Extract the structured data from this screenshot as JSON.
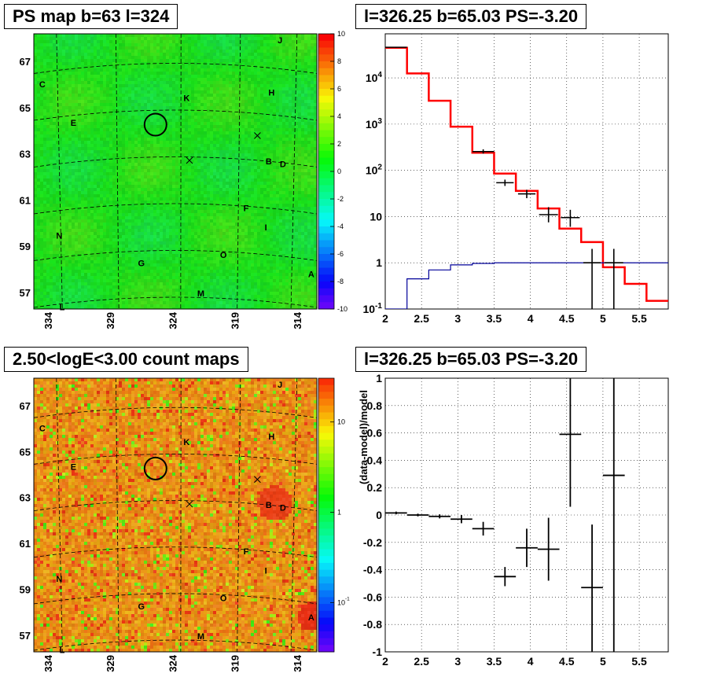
{
  "panels": {
    "ps_map_title": "PS map b=63 l=324",
    "spectrum_title": "l=326.25 b=65.03 PS=-3.20",
    "count_map_title": "2.50<logE<3.00 count maps",
    "residual_title": "l=326.25 b=65.03 PS=-3.20"
  },
  "colors": {
    "map_green": "#1ee82a",
    "map_orange": "#f0a020",
    "model_line": "#ff0000",
    "background_line": "#000099",
    "data_points": "#000000"
  },
  "chart_data": [
    {
      "type": "heatmap",
      "id": "ps_map",
      "title": "PS map b=63 l=324",
      "x_tick_labels": [
        "334",
        "329",
        "324",
        "319",
        "314"
      ],
      "y_tick_labels": [
        "67",
        "65",
        "63",
        "61",
        "59",
        "57"
      ],
      "colorbar_ticks": [
        "10",
        "8",
        "6",
        "4",
        "2",
        "0",
        "-2",
        "-4",
        "-6",
        "-8",
        "-10"
      ],
      "colorbar_range": [
        -10,
        10
      ],
      "dominant_value_range": [
        -1,
        3
      ],
      "source_labels": [
        "J",
        "C",
        "H",
        "K",
        "E",
        "B",
        "D",
        "F",
        "I",
        "N",
        "O",
        "G",
        "A",
        "M",
        "L"
      ],
      "markers": [
        "circle",
        "x",
        "x"
      ]
    },
    {
      "type": "line",
      "id": "spectrum",
      "title": "l=326.25 b=65.03 PS=-3.20",
      "x_tick_labels": [
        "2",
        "2.5",
        "3",
        "3.5",
        "4",
        "4.5",
        "5",
        "5.5"
      ],
      "xlim": [
        2,
        5.9
      ],
      "y_tick_labels": [
        "10^-1",
        "1",
        "10",
        "10^2",
        "10^3",
        "10^4"
      ],
      "ylim": [
        0.1,
        90000
      ],
      "yscale": "log",
      "grid": true,
      "series": [
        {
          "role": "model",
          "color": "#ff0000",
          "step_edges": [
            2,
            2.3,
            2.6,
            2.9,
            3.2,
            3.5,
            3.8,
            4.1,
            4.4,
            4.7,
            5.0,
            5.3,
            5.6,
            5.9
          ],
          "values": [
            45000,
            12500,
            3200,
            880,
            240,
            85,
            36,
            15,
            5.5,
            2.8,
            0.8,
            0.35,
            0.15
          ]
        },
        {
          "role": "background",
          "color": "#000099",
          "step_edges": [
            2,
            2.3,
            2.6,
            2.9,
            3.2,
            3.5,
            3.8,
            4.1,
            4.4,
            4.7,
            5.0,
            5.3,
            5.6,
            5.9
          ],
          "values": [
            0.1,
            0.45,
            0.7,
            0.9,
            0.97,
            1.0,
            1.0,
            1.0,
            1.0,
            1.0,
            1.0,
            1.0,
            1.0
          ]
        },
        {
          "role": "data",
          "color": "#000000",
          "points": [
            {
              "x": 2.15,
              "y": 46000,
              "xerr": 0.15,
              "ylo": 45000,
              "yhi": 47000
            },
            {
              "x": 3.35,
              "y": 255,
              "xerr": 0.15,
              "ylo": 230,
              "yhi": 285
            },
            {
              "x": 3.65,
              "y": 54,
              "xerr": 0.12,
              "ylo": 46,
              "yhi": 63
            },
            {
              "x": 3.95,
              "y": 31,
              "xerr": 0.12,
              "ylo": 25,
              "yhi": 38
            },
            {
              "x": 4.25,
              "y": 11,
              "xerr": 0.13,
              "ylo": 7.5,
              "yhi": 16
            },
            {
              "x": 4.55,
              "y": 9.5,
              "xerr": 0.13,
              "ylo": 6,
              "yhi": 14
            },
            {
              "x": 4.85,
              "y": 1.0,
              "xerr": 0.12,
              "ylo": 0.1,
              "yhi": 2.0
            },
            {
              "x": 5.15,
              "y": 1.0,
              "xerr": 0.13,
              "ylo": 0.1,
              "yhi": 2.0
            }
          ]
        }
      ]
    },
    {
      "type": "heatmap",
      "id": "count_map",
      "title": "2.50<logE<3.00 count maps",
      "x_tick_labels": [
        "334",
        "329",
        "324",
        "319",
        "314"
      ],
      "y_tick_labels": [
        "67",
        "65",
        "63",
        "61",
        "59",
        "57"
      ],
      "colorbar_ticks": [
        "10",
        "1",
        "10^-1"
      ],
      "colorbar_scale": "log",
      "source_labels": [
        "J",
        "C",
        "H",
        "K",
        "E",
        "B",
        "D",
        "F",
        "I",
        "N",
        "O",
        "G",
        "A",
        "M",
        "L"
      ],
      "markers": [
        "circle",
        "x",
        "x"
      ]
    },
    {
      "type": "scatter",
      "id": "residual",
      "title": "l=326.25 b=65.03 PS=-3.20",
      "ylabel": "(data-model)/model",
      "x_tick_labels": [
        "2",
        "2.5",
        "3",
        "3.5",
        "4",
        "4.5",
        "5",
        "5.5"
      ],
      "xlim": [
        2,
        5.9
      ],
      "y_tick_labels": [
        "1",
        "0.8",
        "0.6",
        "0.4",
        "0.2",
        "0",
        "-0.2",
        "-0.4",
        "-0.6",
        "-0.8",
        "-1"
      ],
      "ylim": [
        -1,
        1
      ],
      "grid": true,
      "points": [
        {
          "x": 2.15,
          "y": 0.015,
          "xerr": 0.15,
          "ylo": 0.005,
          "yhi": 0.025
        },
        {
          "x": 2.45,
          "y": 0.0,
          "xerr": 0.15,
          "ylo": -0.01,
          "yhi": 0.01
        },
        {
          "x": 2.75,
          "y": -0.01,
          "xerr": 0.15,
          "ylo": -0.025,
          "yhi": 0.005
        },
        {
          "x": 3.05,
          "y": -0.03,
          "xerr": 0.15,
          "ylo": -0.06,
          "yhi": 0.0
        },
        {
          "x": 3.35,
          "y": -0.1,
          "xerr": 0.15,
          "ylo": -0.15,
          "yhi": -0.05
        },
        {
          "x": 3.65,
          "y": -0.45,
          "xerr": 0.15,
          "ylo": -0.52,
          "yhi": -0.38
        },
        {
          "x": 3.95,
          "y": -0.24,
          "xerr": 0.15,
          "ylo": -0.38,
          "yhi": -0.1
        },
        {
          "x": 4.25,
          "y": -0.25,
          "xerr": 0.15,
          "ylo": -0.48,
          "yhi": -0.02
        },
        {
          "x": 4.55,
          "y": 0.59,
          "xerr": 0.15,
          "ylo": 0.06,
          "yhi": 1.0
        },
        {
          "x": 4.85,
          "y": -0.53,
          "xerr": 0.15,
          "ylo": -1.0,
          "yhi": -0.07
        },
        {
          "x": 5.15,
          "y": 0.29,
          "xerr": 0.15,
          "ylo": -1.0,
          "yhi": 1.0
        }
      ]
    }
  ]
}
